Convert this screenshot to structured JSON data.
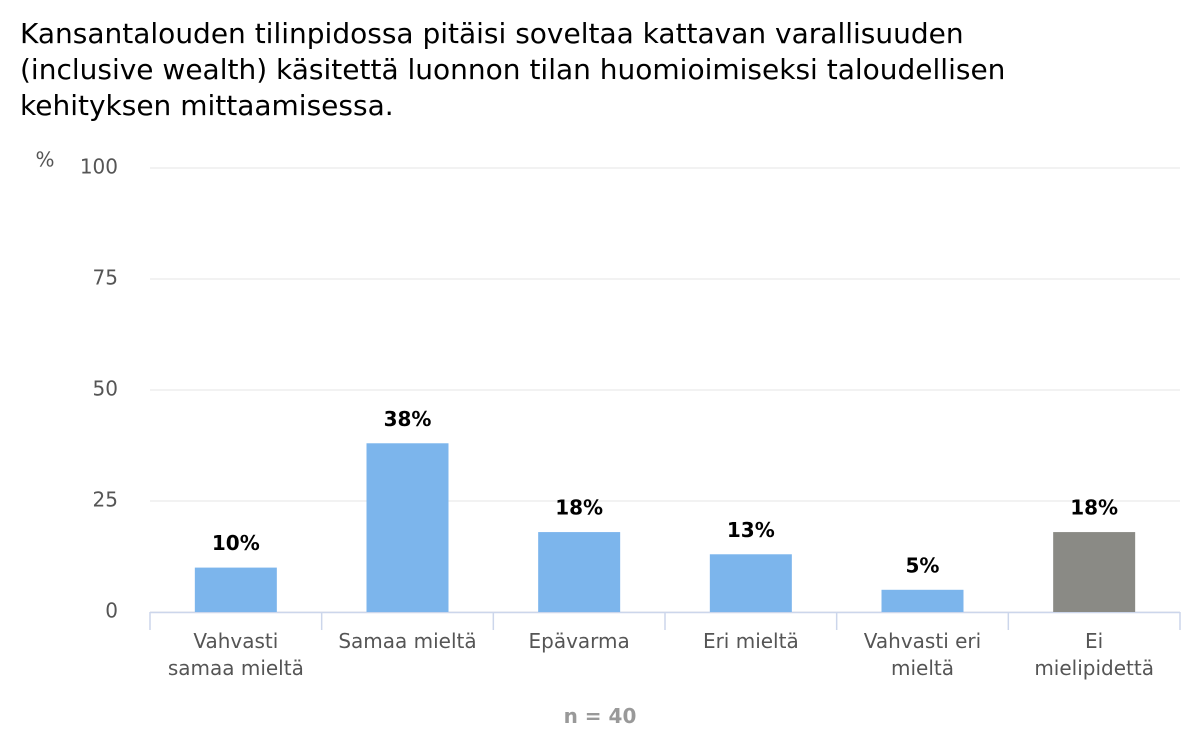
{
  "chart_data": {
    "type": "bar",
    "title": "Kansantalouden tilinpidossa pitäisi soveltaa kattavan varallisuuden (inclusive wealth) käsitettä luonnon tilan huomioimiseksi taloudellisen kehityksen mittaamisessa.",
    "y_label": "%",
    "categories": [
      "Vahvasti samaa mieltä",
      "Samaa mieltä",
      "Epävarma",
      "Eri mieltä",
      "Vahvasti eri mieltä",
      "Ei mielipidettä"
    ],
    "values": [
      10,
      38,
      18,
      13,
      5,
      18
    ],
    "value_labels": [
      "10%",
      "38%",
      "18%",
      "13%",
      "5%",
      "18%"
    ],
    "colors": [
      "#7cb5ec",
      "#7cb5ec",
      "#7cb5ec",
      "#7cb5ec",
      "#7cb5ec",
      "#8a8a85"
    ],
    "ylim": [
      0,
      100
    ],
    "yticks": [
      0,
      25,
      50,
      75,
      100
    ],
    "grid": true,
    "note": "n = 40"
  }
}
